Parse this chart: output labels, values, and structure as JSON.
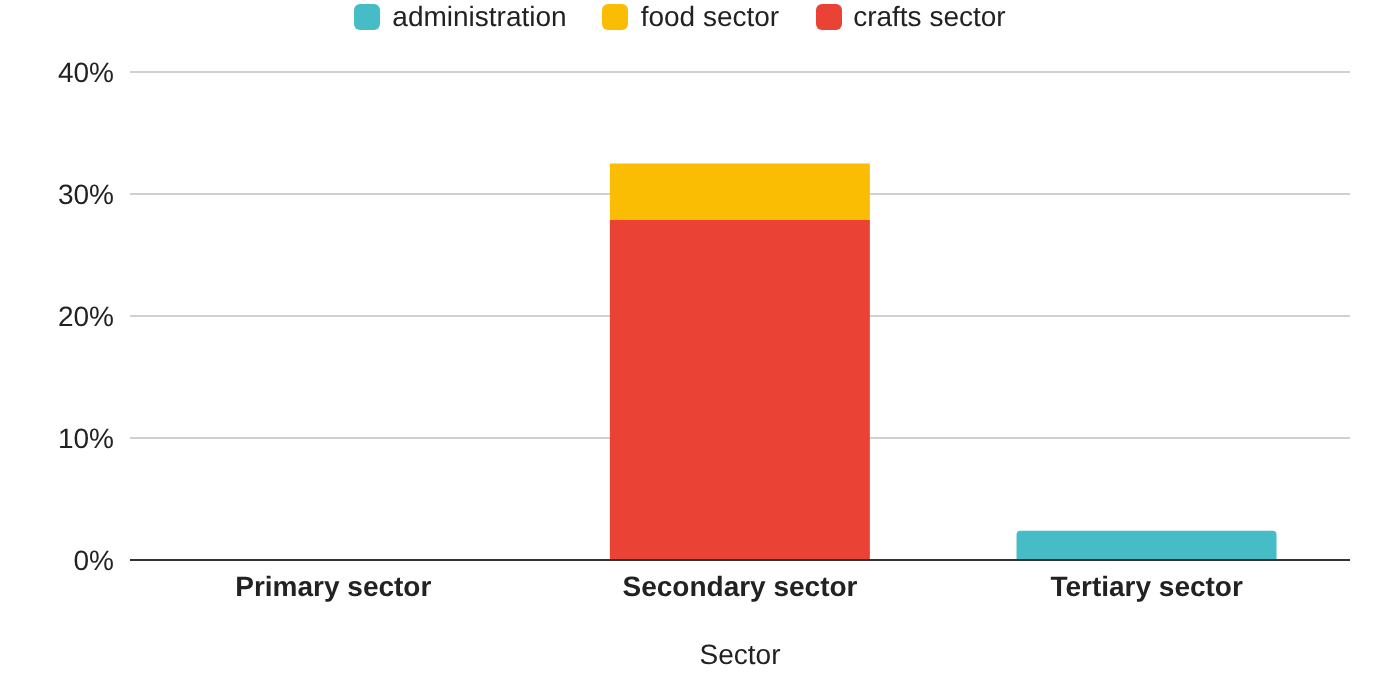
{
  "chart_data": {
    "type": "bar",
    "stacked": true,
    "xlabel": "Sector",
    "categories": [
      "Primary sector",
      "Secondary sector",
      "Tertiary sector"
    ],
    "series": [
      {
        "name": "crafts sector",
        "color": "#ea4335",
        "values": [
          0,
          27.9,
          0
        ]
      },
      {
        "name": "food sector",
        "color": "#fbbc04",
        "values": [
          0,
          4.6,
          0
        ]
      },
      {
        "name": "administration",
        "color": "#46bdc6",
        "values": [
          0,
          0,
          2.4
        ]
      }
    ],
    "ylim": [
      0,
      40
    ],
    "yticks": [
      {
        "value": 0,
        "label": "0%"
      },
      {
        "value": 10,
        "label": "10%"
      },
      {
        "value": 20,
        "label": "20%"
      },
      {
        "value": 30,
        "label": "30%"
      },
      {
        "value": 40,
        "label": "40%"
      }
    ],
    "grid": "y",
    "legend": "top"
  }
}
